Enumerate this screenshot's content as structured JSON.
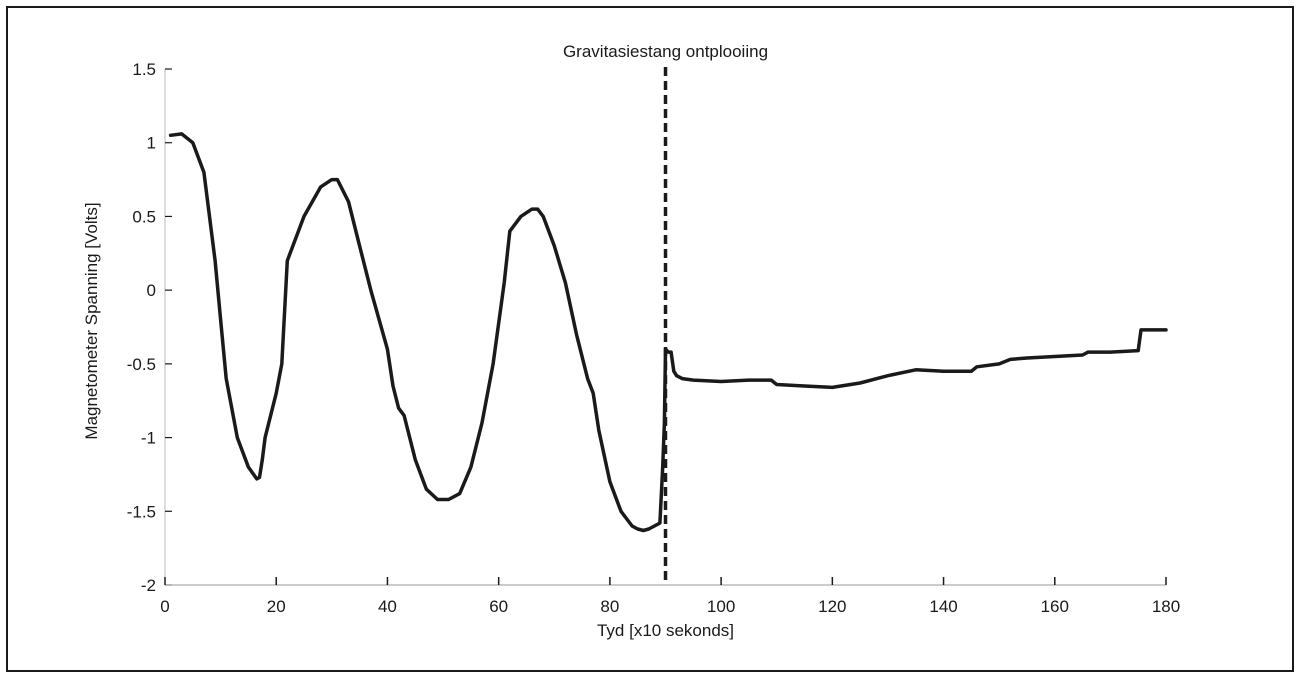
{
  "chart_data": {
    "type": "line",
    "xlabel": "Tyd [x10 sekonds]",
    "ylabel": "Magnetometer Spanning [Volts]",
    "xlim": [
      0,
      180
    ],
    "ylim": [
      -2,
      1.5
    ],
    "x_ticks": [
      0,
      20,
      40,
      60,
      80,
      100,
      120,
      140,
      160,
      180
    ],
    "y_ticks": [
      1.5,
      1,
      0.5,
      0,
      -0.5,
      -1,
      -1.5,
      -2
    ],
    "y_tick_labels": [
      "1.5",
      "1",
      "0.5",
      "0",
      "-0.5",
      "-1",
      "-1.5",
      "-2"
    ],
    "grid": false,
    "annotation": {
      "text": "Gravitasiestang ontplooiing",
      "x": 90
    },
    "series": [
      {
        "color": "#1a1a1a",
        "x": [
          1,
          3,
          5,
          7,
          9,
          10,
          11,
          13,
          15,
          16.5,
          17,
          17.5,
          18,
          20,
          21,
          22,
          25,
          28,
          30,
          31,
          33,
          35,
          37,
          40,
          41,
          42,
          43,
          45,
          47,
          49,
          51,
          53,
          55,
          57,
          59,
          61,
          62,
          64,
          66,
          67,
          68,
          70,
          72,
          74,
          76,
          77,
          78,
          80,
          82,
          84,
          85,
          86,
          87,
          88,
          89,
          89.5,
          89.8,
          90,
          90.5,
          91,
          91.5,
          92,
          93,
          95,
          100,
          105,
          109,
          110,
          115,
          120,
          125,
          130,
          135,
          140,
          145,
          146,
          150,
          152,
          155,
          160,
          165,
          166,
          170,
          175,
          175.5,
          180
        ],
        "y": [
          1.05,
          1.06,
          1.0,
          0.8,
          0.2,
          -0.2,
          -0.6,
          -1.0,
          -1.2,
          -1.28,
          -1.27,
          -1.15,
          -1.0,
          -0.7,
          -0.5,
          0.2,
          0.5,
          0.7,
          0.75,
          0.75,
          0.6,
          0.3,
          0.0,
          -0.4,
          -0.65,
          -0.8,
          -0.85,
          -1.15,
          -1.35,
          -1.42,
          -1.42,
          -1.38,
          -1.2,
          -0.9,
          -0.5,
          0.05,
          0.4,
          0.5,
          0.55,
          0.55,
          0.5,
          0.3,
          0.05,
          -0.3,
          -0.6,
          -0.7,
          -0.95,
          -1.3,
          -1.5,
          -1.6,
          -1.62,
          -1.63,
          -1.62,
          -1.6,
          -1.58,
          -1.2,
          -0.9,
          -0.4,
          -0.42,
          -0.42,
          -0.55,
          -0.58,
          -0.6,
          -0.61,
          -0.62,
          -0.61,
          -0.61,
          -0.64,
          -0.65,
          -0.66,
          -0.63,
          -0.58,
          -0.54,
          -0.55,
          -0.55,
          -0.52,
          -0.5,
          -0.47,
          -0.46,
          -0.45,
          -0.44,
          -0.42,
          -0.42,
          -0.41,
          -0.27,
          -0.27
        ]
      }
    ]
  }
}
